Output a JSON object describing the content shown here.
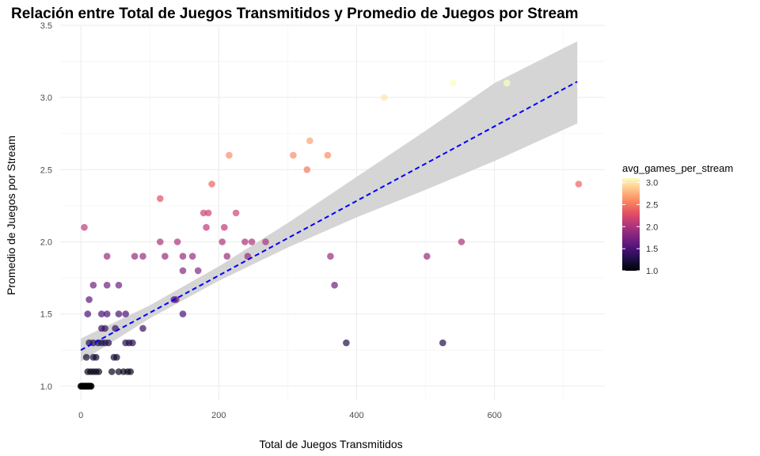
{
  "chart_data": {
    "type": "scatter",
    "title": "Relación entre Total de Juegos Transmitidos y Promedio de Juegos por Stream",
    "xlabel": "Total de Juegos Transmitidos",
    "ylabel": "Promedio de Juegos por Stream",
    "xlim": [
      -30,
      760
    ],
    "ylim": [
      0.9,
      3.5
    ],
    "x_ticks": [
      0,
      200,
      400,
      600
    ],
    "y_ticks": [
      1.0,
      1.5,
      2.0,
      2.5,
      3.0,
      3.5
    ],
    "x_tick_labels": [
      "0",
      "200",
      "400",
      "600"
    ],
    "y_tick_labels": [
      "1.0",
      "1.5",
      "2.0",
      "2.5",
      "3.0",
      "3.5"
    ],
    "grid": true,
    "legend": {
      "title": "avg_games_per_stream",
      "placement": "right",
      "range": [
        1.0,
        3.1
      ],
      "ticks": [
        1.0,
        1.5,
        2.0,
        2.5,
        3.0
      ],
      "tick_labels": [
        "1.0",
        "1.5",
        "2.0",
        "2.5",
        "3.0"
      ],
      "colormap": "magma"
    },
    "trend_line": {
      "type": "linear",
      "color": "#0000ff",
      "style": "dashed",
      "points": [
        [
          0,
          1.25
        ],
        [
          720,
          3.11
        ]
      ],
      "confidence_band": [
        {
          "x": 0,
          "lower": 1.17,
          "upper": 1.33
        },
        {
          "x": 100,
          "lower": 1.47,
          "upper": 1.56
        },
        {
          "x": 200,
          "lower": 1.73,
          "upper": 1.83
        },
        {
          "x": 300,
          "lower": 1.96,
          "upper": 2.13
        },
        {
          "x": 400,
          "lower": 2.17,
          "upper": 2.45
        },
        {
          "x": 500,
          "lower": 2.36,
          "upper": 2.77
        },
        {
          "x": 600,
          "lower": 2.56,
          "upper": 3.1
        },
        {
          "x": 720,
          "lower": 2.82,
          "upper": 3.39
        }
      ],
      "band_color": "#d3d3d3"
    },
    "points": [
      {
        "x": 0,
        "y": 1.0
      },
      {
        "x": 1,
        "y": 1.0
      },
      {
        "x": 2,
        "y": 1.0
      },
      {
        "x": 3,
        "y": 1.0
      },
      {
        "x": 4,
        "y": 1.0
      },
      {
        "x": 5,
        "y": 1.0
      },
      {
        "x": 6,
        "y": 1.0
      },
      {
        "x": 7,
        "y": 1.0
      },
      {
        "x": 8,
        "y": 1.0
      },
      {
        "x": 9,
        "y": 1.0
      },
      {
        "x": 10,
        "y": 1.0
      },
      {
        "x": 11,
        "y": 1.0
      },
      {
        "x": 12,
        "y": 1.0
      },
      {
        "x": 13,
        "y": 1.0
      },
      {
        "x": 14,
        "y": 1.0
      },
      {
        "x": 15,
        "y": 1.0
      },
      {
        "x": 5,
        "y": 2.1
      },
      {
        "x": 10,
        "y": 1.1
      },
      {
        "x": 14,
        "y": 1.1
      },
      {
        "x": 18,
        "y": 1.1
      },
      {
        "x": 22,
        "y": 1.1
      },
      {
        "x": 26,
        "y": 1.1
      },
      {
        "x": 45,
        "y": 1.1
      },
      {
        "x": 55,
        "y": 1.1
      },
      {
        "x": 62,
        "y": 1.1
      },
      {
        "x": 68,
        "y": 1.1
      },
      {
        "x": 72,
        "y": 1.1
      },
      {
        "x": 8,
        "y": 1.2
      },
      {
        "x": 18,
        "y": 1.2
      },
      {
        "x": 22,
        "y": 1.2
      },
      {
        "x": 48,
        "y": 1.2
      },
      {
        "x": 52,
        "y": 1.2
      },
      {
        "x": 12,
        "y": 1.3
      },
      {
        "x": 18,
        "y": 1.3
      },
      {
        "x": 25,
        "y": 1.3
      },
      {
        "x": 30,
        "y": 1.3
      },
      {
        "x": 35,
        "y": 1.3
      },
      {
        "x": 40,
        "y": 1.3
      },
      {
        "x": 65,
        "y": 1.3
      },
      {
        "x": 70,
        "y": 1.3
      },
      {
        "x": 75,
        "y": 1.3
      },
      {
        "x": 385,
        "y": 1.3
      },
      {
        "x": 525,
        "y": 1.3
      },
      {
        "x": 30,
        "y": 1.4
      },
      {
        "x": 35,
        "y": 1.4
      },
      {
        "x": 50,
        "y": 1.4
      },
      {
        "x": 90,
        "y": 1.4
      },
      {
        "x": 10,
        "y": 1.5
      },
      {
        "x": 30,
        "y": 1.5
      },
      {
        "x": 38,
        "y": 1.5
      },
      {
        "x": 55,
        "y": 1.5
      },
      {
        "x": 65,
        "y": 1.5
      },
      {
        "x": 148,
        "y": 1.5
      },
      {
        "x": 12,
        "y": 1.6
      },
      {
        "x": 135,
        "y": 1.6
      },
      {
        "x": 138,
        "y": 1.6
      },
      {
        "x": 18,
        "y": 1.7
      },
      {
        "x": 38,
        "y": 1.7
      },
      {
        "x": 55,
        "y": 1.7
      },
      {
        "x": 368,
        "y": 1.7
      },
      {
        "x": 148,
        "y": 1.8
      },
      {
        "x": 170,
        "y": 1.8
      },
      {
        "x": 38,
        "y": 1.9
      },
      {
        "x": 78,
        "y": 1.9
      },
      {
        "x": 90,
        "y": 1.9
      },
      {
        "x": 122,
        "y": 1.9
      },
      {
        "x": 148,
        "y": 1.9
      },
      {
        "x": 162,
        "y": 1.9
      },
      {
        "x": 212,
        "y": 1.9
      },
      {
        "x": 242,
        "y": 1.9
      },
      {
        "x": 362,
        "y": 1.9
      },
      {
        "x": 502,
        "y": 1.9
      },
      {
        "x": 115,
        "y": 2.0
      },
      {
        "x": 140,
        "y": 2.0
      },
      {
        "x": 205,
        "y": 2.0
      },
      {
        "x": 238,
        "y": 2.0
      },
      {
        "x": 248,
        "y": 2.0
      },
      {
        "x": 268,
        "y": 2.0
      },
      {
        "x": 552,
        "y": 2.0
      },
      {
        "x": 182,
        "y": 2.1
      },
      {
        "x": 208,
        "y": 2.1
      },
      {
        "x": 178,
        "y": 2.2
      },
      {
        "x": 185,
        "y": 2.2
      },
      {
        "x": 225,
        "y": 2.2
      },
      {
        "x": 115,
        "y": 2.3
      },
      {
        "x": 190,
        "y": 2.4
      },
      {
        "x": 722,
        "y": 2.4
      },
      {
        "x": 328,
        "y": 2.5
      },
      {
        "x": 215,
        "y": 2.6
      },
      {
        "x": 308,
        "y": 2.6
      },
      {
        "x": 358,
        "y": 2.6
      },
      {
        "x": 332,
        "y": 2.7
      },
      {
        "x": 440,
        "y": 3.0
      },
      {
        "x": 540,
        "y": 3.1
      },
      {
        "x": 618,
        "y": 3.1
      }
    ]
  }
}
